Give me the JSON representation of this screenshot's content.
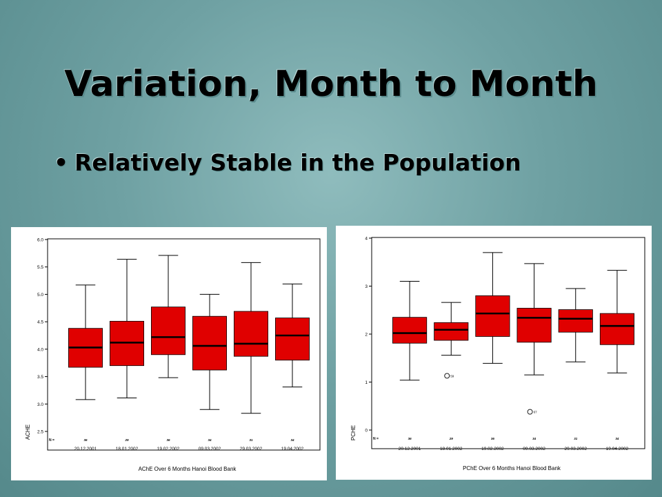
{
  "slide": {
    "title": "Variation, Month to Month",
    "bullet": "Relatively Stable in the Population"
  },
  "chart_data": [
    {
      "type": "box",
      "title": "AChE Over 6 Months Hanoi Blood Bank",
      "ylabel": "ACHE",
      "ylim": [
        2.5,
        6.0
      ],
      "yticks": [
        "2.5",
        "3.0",
        "3.5",
        "4.0",
        "4.5",
        "5.0",
        "5.5",
        "6.0"
      ],
      "n_label": "N =",
      "categories": [
        "20.12.2001",
        "18.01.2002",
        "19.02.2002",
        "09.03.2002",
        "29.03.2002",
        "19.04.2002"
      ],
      "n": [
        "36",
        "29",
        "36",
        "34",
        "31",
        "34"
      ],
      "boxes": [
        {
          "min": 3.08,
          "q1": 3.67,
          "median": 4.03,
          "q3": 4.38,
          "max": 5.17
        },
        {
          "min": 3.11,
          "q1": 3.7,
          "median": 4.12,
          "q3": 4.51,
          "max": 5.64
        },
        {
          "min": 3.48,
          "q1": 3.9,
          "median": 4.22,
          "q3": 4.77,
          "max": 5.71
        },
        {
          "min": 2.9,
          "q1": 3.62,
          "median": 4.06,
          "q3": 4.6,
          "max": 5.0
        },
        {
          "min": 2.83,
          "q1": 3.87,
          "median": 4.1,
          "q3": 4.69,
          "max": 5.58
        },
        {
          "min": 3.31,
          "q1": 3.8,
          "median": 4.25,
          "q3": 4.57,
          "max": 5.19
        }
      ],
      "outliers": [],
      "box_color": "#e00000"
    },
    {
      "type": "box",
      "title": "PChE Over 6 Months Hanoi Blood Bank",
      "ylabel": "PCHE",
      "ylim": [
        0,
        4
      ],
      "yticks": [
        "0",
        "1",
        "2",
        "3",
        "4"
      ],
      "n_label": "N =",
      "categories": [
        "20.12.2001",
        "18.01.2002",
        "19.02.2002",
        "09.03.2002",
        "29.03.2002",
        "19.04.2002"
      ],
      "n": [
        "36",
        "29",
        "36",
        "34",
        "31",
        "34"
      ],
      "boxes": [
        {
          "min": 1.04,
          "q1": 1.81,
          "median": 2.02,
          "q3": 2.35,
          "max": 3.1
        },
        {
          "min": 1.56,
          "q1": 1.87,
          "median": 2.09,
          "q3": 2.24,
          "max": 2.66
        },
        {
          "min": 1.39,
          "q1": 1.95,
          "median": 2.43,
          "q3": 2.8,
          "max": 3.7
        },
        {
          "min": 1.15,
          "q1": 1.83,
          "median": 2.34,
          "q3": 2.54,
          "max": 3.47
        },
        {
          "min": 1.42,
          "q1": 2.04,
          "median": 2.32,
          "q3": 2.51,
          "max": 2.95
        },
        {
          "min": 1.19,
          "q1": 1.78,
          "median": 2.17,
          "q3": 2.43,
          "max": 3.33
        }
      ],
      "outliers": [
        {
          "category": 1,
          "value": 1.13,
          "label": "59"
        },
        {
          "category": 3,
          "value": 0.38,
          "label": "67"
        }
      ],
      "box_color": "#e00000"
    }
  ]
}
